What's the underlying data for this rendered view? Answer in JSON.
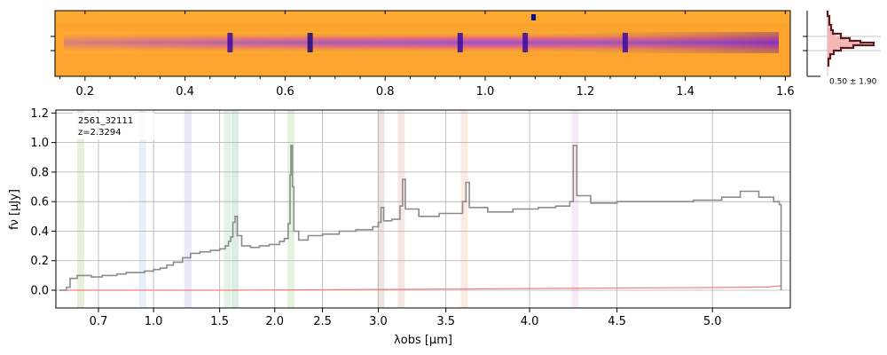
{
  "chart_data": [
    {
      "type": "heatmap",
      "panel": "2D spectrum",
      "colormap": "plasma (purple = high flux, orange = low flux)",
      "xticks": [
        "0.2",
        "0.4",
        "0.6",
        "0.8",
        "1.0",
        "1.2",
        "1.4",
        "1.6"
      ],
      "xtick_values": [
        0.2,
        0.4,
        0.6,
        0.8,
        1.0,
        1.2,
        1.4,
        1.6
      ],
      "xlim": [
        0.14,
        1.61
      ],
      "trace_emission_features_um": [
        0.49,
        0.65,
        0.95,
        1.08,
        1.28
      ]
    },
    {
      "type": "line",
      "panel": "spatial profile histogram",
      "annotation": "0.50 ± 1.90",
      "series_color": "#5a1a1a",
      "fill_color": "#f4b6b6",
      "profile_peak_fraction": 1.0
    },
    {
      "type": "line",
      "panel": "1D spectrum",
      "title_lines": [
        "2561_32111",
        "z=2.3294"
      ],
      "xlabel": "λobs [μm]",
      "ylabel": "fν [μJy]",
      "xtick_labels": [
        "0.7",
        "1.0",
        "1.5",
        "2.0",
        "2.5",
        "3.0",
        "3.5",
        "4.0",
        "4.5",
        "5.0"
      ],
      "xtick_values": [
        0.7,
        1.0,
        1.5,
        2.0,
        2.5,
        3.0,
        3.5,
        4.0,
        4.5,
        5.0
      ],
      "ytick_labels": [
        "0.0",
        "0.2",
        "0.4",
        "0.6",
        "0.8",
        "1.0",
        "1.2"
      ],
      "ytick_values": [
        0.0,
        0.2,
        0.4,
        0.6,
        0.8,
        1.0,
        1.2
      ],
      "ylim": [
        -0.12,
        1.22
      ],
      "xlim": [
        0.58,
        5.42
      ],
      "grid": true,
      "line_bands_um": [
        {
          "x": 0.65,
          "color": "#d8e8c8"
        },
        {
          "x": 0.94,
          "color": "#d8e8f4"
        },
        {
          "x": 1.26,
          "color": "#e4dcf4"
        },
        {
          "x": 1.57,
          "color": "#d4ecd8"
        },
        {
          "x": 1.64,
          "color": "#c8e4d8"
        },
        {
          "x": 2.17,
          "color": "#d8ecd0"
        },
        {
          "x": 3.02,
          "color": "#e8d4d0"
        },
        {
          "x": 3.17,
          "color": "#f0dcd4"
        },
        {
          "x": 3.61,
          "color": "#f8e0d4"
        },
        {
          "x": 4.26,
          "color": "#f4e0f0"
        }
      ],
      "series": [
        {
          "name": "flux",
          "color": "#8c8c8c",
          "points": [
            [
              0.59,
              0.0
            ],
            [
              0.61,
              0.02
            ],
            [
              0.62,
              0.08
            ],
            [
              0.64,
              0.1
            ],
            [
              0.68,
              0.09
            ],
            [
              0.72,
              0.1
            ],
            [
              0.76,
              0.1
            ],
            [
              0.8,
              0.11
            ],
            [
              0.85,
              0.12
            ],
            [
              0.9,
              0.12
            ],
            [
              0.95,
              0.13
            ],
            [
              1.0,
              0.14
            ],
            [
              1.05,
              0.15
            ],
            [
              1.1,
              0.17
            ],
            [
              1.15,
              0.19
            ],
            [
              1.22,
              0.22
            ],
            [
              1.28,
              0.25
            ],
            [
              1.35,
              0.26
            ],
            [
              1.43,
              0.27
            ],
            [
              1.5,
              0.28
            ],
            [
              1.55,
              0.3
            ],
            [
              1.58,
              0.33
            ],
            [
              1.6,
              0.36
            ],
            [
              1.62,
              0.46
            ],
            [
              1.64,
              0.5
            ],
            [
              1.66,
              0.37
            ],
            [
              1.7,
              0.3
            ],
            [
              1.78,
              0.29
            ],
            [
              1.86,
              0.3
            ],
            [
              1.95,
              0.31
            ],
            [
              2.05,
              0.33
            ],
            [
              2.1,
              0.35
            ],
            [
              2.14,
              0.45
            ],
            [
              2.16,
              0.78
            ],
            [
              2.17,
              0.98
            ],
            [
              2.185,
              0.7
            ],
            [
              2.2,
              0.4
            ],
            [
              2.25,
              0.34
            ],
            [
              2.35,
              0.37
            ],
            [
              2.5,
              0.38
            ],
            [
              2.65,
              0.4
            ],
            [
              2.8,
              0.41
            ],
            [
              2.95,
              0.43
            ],
            [
              3.0,
              0.46
            ],
            [
              3.02,
              0.56
            ],
            [
              3.04,
              0.47
            ],
            [
              3.1,
              0.48
            ],
            [
              3.16,
              0.57
            ],
            [
              3.18,
              0.75
            ],
            [
              3.2,
              0.55
            ],
            [
              3.3,
              0.5
            ],
            [
              3.45,
              0.52
            ],
            [
              3.58,
              0.52
            ],
            [
              3.6,
              0.6
            ],
            [
              3.62,
              0.73
            ],
            [
              3.64,
              0.56
            ],
            [
              3.75,
              0.53
            ],
            [
              3.9,
              0.55
            ],
            [
              4.05,
              0.56
            ],
            [
              4.15,
              0.57
            ],
            [
              4.23,
              0.6
            ],
            [
              4.25,
              0.98
            ],
            [
              4.27,
              0.64
            ],
            [
              4.35,
              0.59
            ],
            [
              4.5,
              0.6
            ],
            [
              4.7,
              0.6
            ],
            [
              4.9,
              0.61
            ],
            [
              5.05,
              0.63
            ],
            [
              5.15,
              0.67
            ],
            [
              5.25,
              0.63
            ],
            [
              5.33,
              0.6
            ],
            [
              5.36,
              0.58
            ],
            [
              5.37,
              0.0
            ]
          ]
        },
        {
          "name": "error",
          "color": "#f08080",
          "points": [
            [
              0.59,
              0.0
            ],
            [
              1.5,
              0.0
            ],
            [
              2.5,
              0.003
            ],
            [
              3.5,
              0.008
            ],
            [
              4.5,
              0.015
            ],
            [
              5.0,
              0.018
            ],
            [
              5.3,
              0.022
            ],
            [
              5.37,
              0.03
            ]
          ]
        }
      ]
    }
  ]
}
